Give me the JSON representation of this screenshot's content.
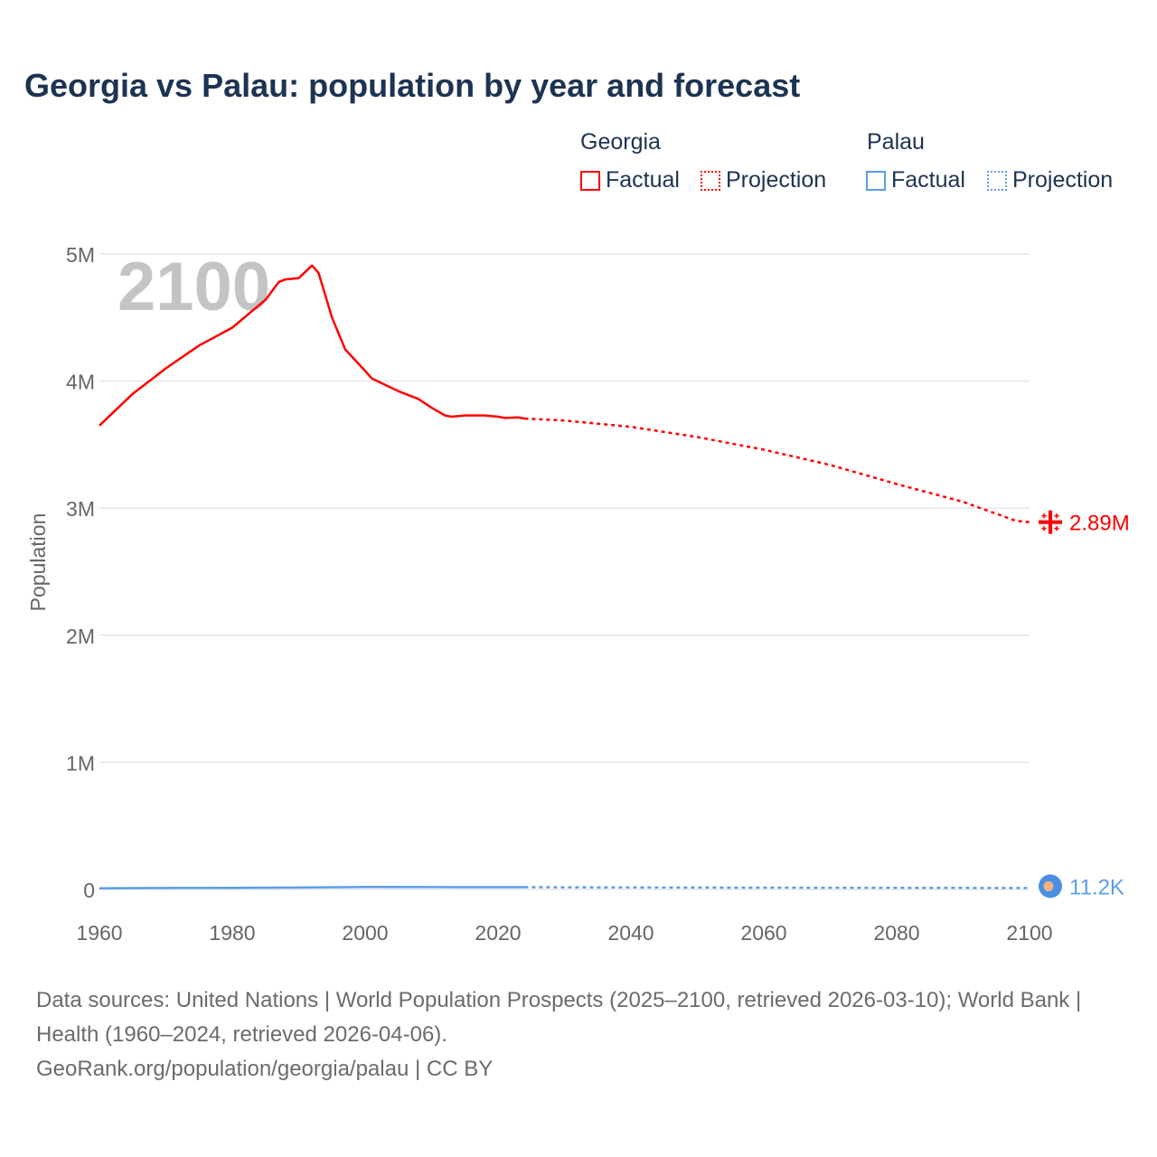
{
  "title": "Georgia vs Palau: population by year and forecast",
  "legend": {
    "groups": [
      {
        "name": "Georgia",
        "color": "#ff0000",
        "factual": "Factual",
        "projection": "Projection"
      },
      {
        "name": "Palau",
        "color": "#5b9ee8",
        "factual": "Factual",
        "projection": "Projection"
      }
    ]
  },
  "year_label": "2100",
  "footer": {
    "line1": "Data sources: United Nations | World Population Prospects (2025–2100, retrieved 2026-03-10); World Bank | Health (1960–2024, retrieved 2026-04-06).",
    "line2": "GeoRank.org/population/georgia/palau | CC BY"
  },
  "chart_data": {
    "type": "line",
    "title": "Georgia vs Palau: population by year and forecast",
    "xlabel": "",
    "ylabel": "Population",
    "xlim": [
      1960,
      2100
    ],
    "ylim": [
      0,
      5000000
    ],
    "x_ticks": [
      "1960",
      "1980",
      "2000",
      "2020",
      "2040",
      "2060",
      "2080",
      "2100"
    ],
    "y_ticks": [
      {
        "v": 0,
        "label": "0"
      },
      {
        "v": 1000000,
        "label": "1M"
      },
      {
        "v": 2000000,
        "label": "2M"
      },
      {
        "v": 3000000,
        "label": "3M"
      },
      {
        "v": 4000000,
        "label": "4M"
      },
      {
        "v": 5000000,
        "label": "5M"
      }
    ],
    "grid": true,
    "series": [
      {
        "name": "Georgia",
        "color": "#ff0000",
        "end_label": "2.89M",
        "factual": [
          [
            1960,
            3650000
          ],
          [
            1965,
            3900000
          ],
          [
            1970,
            4100000
          ],
          [
            1975,
            4280000
          ],
          [
            1980,
            4420000
          ],
          [
            1985,
            4640000
          ],
          [
            1987,
            4780000
          ],
          [
            1988,
            4800000
          ],
          [
            1990,
            4810000
          ],
          [
            1992,
            4910000
          ],
          [
            1993,
            4850000
          ],
          [
            1995,
            4500000
          ],
          [
            1997,
            4250000
          ],
          [
            2000,
            4080000
          ],
          [
            2001,
            4020000
          ],
          [
            2005,
            3920000
          ],
          [
            2008,
            3860000
          ],
          [
            2010,
            3790000
          ],
          [
            2012,
            3730000
          ],
          [
            2013,
            3720000
          ],
          [
            2015,
            3730000
          ],
          [
            2018,
            3730000
          ],
          [
            2020,
            3720000
          ],
          [
            2021,
            3710000
          ],
          [
            2023,
            3715000
          ],
          [
            2024,
            3705000
          ]
        ],
        "projection": [
          [
            2024,
            3705000
          ],
          [
            2030,
            3690000
          ],
          [
            2040,
            3640000
          ],
          [
            2050,
            3560000
          ],
          [
            2060,
            3460000
          ],
          [
            2070,
            3340000
          ],
          [
            2080,
            3190000
          ],
          [
            2090,
            3050000
          ],
          [
            2098,
            2900000
          ],
          [
            2100,
            2890000
          ]
        ]
      },
      {
        "name": "Palau",
        "color": "#5b9ee8",
        "end_label": "11.2K",
        "factual": [
          [
            1960,
            9600
          ],
          [
            1970,
            11500
          ],
          [
            1980,
            12300
          ],
          [
            1990,
            15100
          ],
          [
            2000,
            19000
          ],
          [
            2010,
            18500
          ],
          [
            2020,
            17900
          ],
          [
            2024,
            17700
          ]
        ],
        "projection": [
          [
            2024,
            17700
          ],
          [
            2040,
            16000
          ],
          [
            2060,
            14200
          ],
          [
            2080,
            12600
          ],
          [
            2100,
            11200
          ]
        ]
      }
    ]
  }
}
